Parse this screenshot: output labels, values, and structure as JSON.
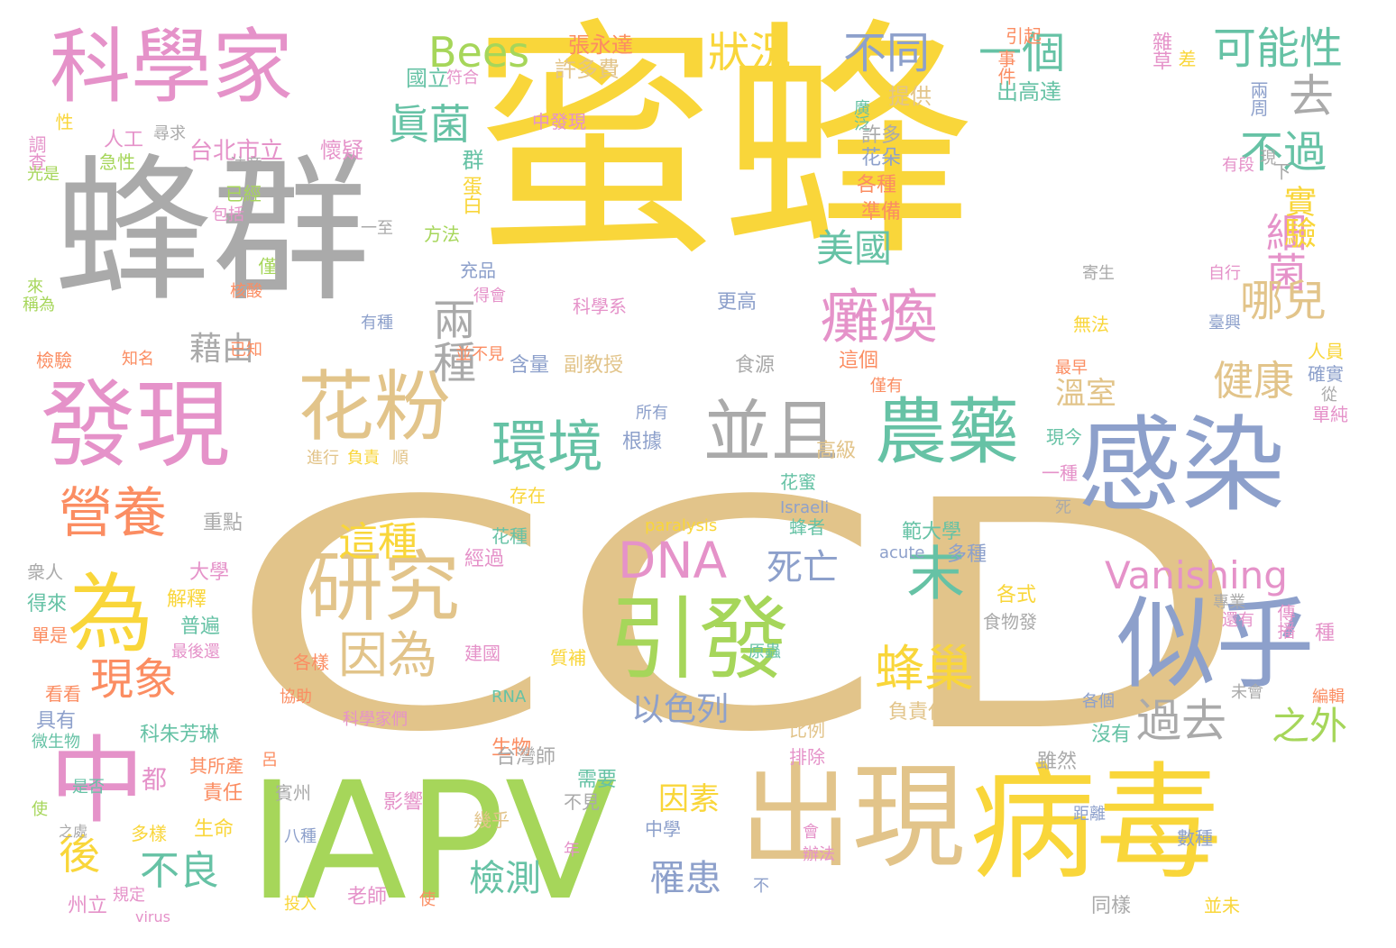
{
  "palette": {
    "yellow": "#f9d63a",
    "tan": "#e2c48a",
    "gray": "#aaaaaa",
    "pink": "#e592c9",
    "green": "#a6d65a",
    "blue": "#8da0cb",
    "orange": "#fb8d62",
    "teal": "#66c2a5"
  },
  "words": [
    {
      "text": "CCD",
      "color": "tan"
    },
    {
      "text": "蜜蜂",
      "color": "yellow"
    },
    {
      "text": "蜂群",
      "color": "gray"
    },
    {
      "text": "科學家",
      "color": "pink"
    },
    {
      "text": "發現",
      "color": "pink"
    },
    {
      "text": "IAPV",
      "color": "green"
    },
    {
      "text": "病毒",
      "color": "yellow"
    },
    {
      "text": "出現",
      "color": "tan"
    },
    {
      "text": "感染",
      "color": "blue"
    },
    {
      "text": "似乎",
      "color": "blue"
    },
    {
      "text": "中",
      "color": "pink"
    },
    {
      "text": "為",
      "color": "yellow"
    },
    {
      "text": "引發",
      "color": "green"
    },
    {
      "text": "研究",
      "color": "tan"
    },
    {
      "text": "花粉",
      "color": "tan"
    },
    {
      "text": "農藥",
      "color": "teal"
    },
    {
      "text": "並且",
      "color": "gray"
    },
    {
      "text": "環境",
      "color": "teal"
    },
    {
      "text": "癱瘓",
      "color": "pink"
    },
    {
      "text": "營養",
      "color": "orange"
    },
    {
      "text": "末",
      "color": "teal"
    },
    {
      "text": "蜂巢",
      "color": "yellow"
    },
    {
      "text": "DNA",
      "color": "pink"
    },
    {
      "text": "Vanishing",
      "color": "pink"
    },
    {
      "text": "Bees",
      "color": "green"
    },
    {
      "text": "狀況",
      "color": "yellow"
    },
    {
      "text": "不同",
      "color": "blue"
    },
    {
      "text": "一個",
      "color": "teal"
    },
    {
      "text": "可能性",
      "color": "teal"
    },
    {
      "text": "去",
      "color": "gray"
    },
    {
      "text": "不過",
      "color": "teal"
    },
    {
      "text": "眞菌",
      "color": "teal"
    },
    {
      "text": "細菌",
      "color": "pink"
    },
    {
      "text": "哪兒",
      "color": "tan"
    },
    {
      "text": "健康",
      "color": "tan"
    },
    {
      "text": "實驗",
      "color": "yellow"
    },
    {
      "text": "美國",
      "color": "teal"
    },
    {
      "text": "兩種",
      "color": "gray"
    },
    {
      "text": "藉由",
      "color": "gray"
    },
    {
      "text": "過去",
      "color": "gray"
    },
    {
      "text": "之外",
      "color": "green"
    },
    {
      "text": "因為",
      "color": "tan"
    },
    {
      "text": "現象",
      "color": "orange"
    },
    {
      "text": "這種",
      "color": "yellow"
    },
    {
      "text": "死亡",
      "color": "blue"
    },
    {
      "text": "不良",
      "color": "teal"
    },
    {
      "text": "後",
      "color": "yellow"
    },
    {
      "text": "檢測",
      "color": "teal"
    },
    {
      "text": "罹患",
      "color": "blue"
    },
    {
      "text": "以色列",
      "color": "blue"
    },
    {
      "text": "溫室",
      "color": "tan"
    },
    {
      "text": "因素",
      "color": "yellow"
    },
    {
      "text": "張永達",
      "color": "orange"
    },
    {
      "text": "許多費",
      "color": "tan"
    },
    {
      "text": "國立",
      "color": "teal"
    },
    {
      "text": "符合",
      "color": "pink"
    },
    {
      "text": "引起",
      "color": "orange"
    },
    {
      "text": "事件",
      "color": "orange"
    },
    {
      "text": "出高達",
      "color": "teal"
    },
    {
      "text": "雜草",
      "color": "pink"
    },
    {
      "text": "差",
      "color": "yellow"
    },
    {
      "text": "兩周",
      "color": "blue"
    },
    {
      "text": "提供",
      "color": "tan"
    },
    {
      "text": "廣泛",
      "color": "teal"
    },
    {
      "text": "許多",
      "color": "gray"
    },
    {
      "text": "花朵",
      "color": "blue"
    },
    {
      "text": "各種",
      "color": "orange"
    },
    {
      "text": "準備",
      "color": "orange"
    },
    {
      "text": "台北市立",
      "color": "pink"
    },
    {
      "text": "懷疑",
      "color": "pink"
    },
    {
      "text": "人工",
      "color": "pink"
    },
    {
      "text": "急性",
      "color": "green"
    },
    {
      "text": "尋求",
      "color": "gray"
    },
    {
      "text": "注意",
      "color": "gray"
    },
    {
      "text": "已經",
      "color": "green"
    },
    {
      "text": "包括",
      "color": "pink"
    },
    {
      "text": "一至",
      "color": "gray"
    },
    {
      "text": "方法",
      "color": "green"
    },
    {
      "text": "群",
      "color": "teal"
    },
    {
      "text": "蛋白",
      "color": "yellow"
    },
    {
      "text": "中發現",
      "color": "pink"
    },
    {
      "text": "性",
      "color": "yellow"
    },
    {
      "text": "調查",
      "color": "pink"
    },
    {
      "text": "光是",
      "color": "green"
    },
    {
      "text": "下",
      "color": "gray"
    },
    {
      "text": "有段",
      "color": "pink"
    },
    {
      "text": "現",
      "color": "gray"
    },
    {
      "text": "寄生",
      "color": "gray"
    },
    {
      "text": "自行",
      "color": "pink"
    },
    {
      "text": "僅",
      "color": "green"
    },
    {
      "text": "核酸",
      "color": "orange"
    },
    {
      "text": "來",
      "color": "green"
    },
    {
      "text": "稱為",
      "color": "green"
    },
    {
      "text": "充品",
      "color": "blue"
    },
    {
      "text": "得會",
      "color": "pink"
    },
    {
      "text": "科學系",
      "color": "pink"
    },
    {
      "text": "更高",
      "color": "blue"
    },
    {
      "text": "無法",
      "color": "yellow"
    },
    {
      "text": "臺興",
      "color": "blue"
    },
    {
      "text": "檢驗",
      "color": "orange"
    },
    {
      "text": "知名",
      "color": "orange"
    },
    {
      "text": "已知",
      "color": "orange"
    },
    {
      "text": "有種",
      "color": "blue"
    },
    {
      "text": "並不見",
      "color": "orange"
    },
    {
      "text": "含量",
      "color": "blue"
    },
    {
      "text": "副教授",
      "color": "tan"
    },
    {
      "text": "食源",
      "color": "gray"
    },
    {
      "text": "這個",
      "color": "orange"
    },
    {
      "text": "人員",
      "color": "yellow"
    },
    {
      "text": "最早",
      "color": "orange"
    },
    {
      "text": "確實",
      "color": "blue"
    },
    {
      "text": "僅有",
      "color": "orange"
    },
    {
      "text": "從",
      "color": "gray"
    },
    {
      "text": "單純",
      "color": "pink"
    },
    {
      "text": "所有",
      "color": "blue"
    },
    {
      "text": "根據",
      "color": "blue"
    },
    {
      "text": "高級",
      "color": "tan"
    },
    {
      "text": "現今",
      "color": "teal"
    },
    {
      "text": "進行",
      "color": "tan"
    },
    {
      "text": "負責",
      "color": "yellow"
    },
    {
      "text": "順",
      "color": "tan"
    },
    {
      "text": "花蜜",
      "color": "teal"
    },
    {
      "text": "一種",
      "color": "pink"
    },
    {
      "text": "存在",
      "color": "yellow"
    },
    {
      "text": "重點",
      "color": "gray"
    },
    {
      "text": "Israeli",
      "color": "blue"
    },
    {
      "text": "死",
      "color": "gray"
    },
    {
      "text": "花種",
      "color": "teal"
    },
    {
      "text": "paralysis",
      "color": "yellow"
    },
    {
      "text": "蜂者",
      "color": "teal"
    },
    {
      "text": "範大學",
      "color": "teal"
    },
    {
      "text": "acute",
      "color": "blue"
    },
    {
      "text": "多種",
      "color": "blue"
    },
    {
      "text": "經過",
      "color": "pink"
    },
    {
      "text": "衆人",
      "color": "gray"
    },
    {
      "text": "大學",
      "color": "pink"
    },
    {
      "text": "解釋",
      "color": "yellow"
    },
    {
      "text": "得來",
      "color": "teal"
    },
    {
      "text": "普遍",
      "color": "teal"
    },
    {
      "text": "最後還",
      "color": "pink"
    },
    {
      "text": "各式",
      "color": "yellow"
    },
    {
      "text": "食物發",
      "color": "gray"
    },
    {
      "text": "專業",
      "color": "gray"
    },
    {
      "text": "還有",
      "color": "pink"
    },
    {
      "text": "傳播",
      "color": "pink"
    },
    {
      "text": "種",
      "color": "pink"
    },
    {
      "text": "單是",
      "color": "orange"
    },
    {
      "text": "看看",
      "color": "orange"
    },
    {
      "text": "具有",
      "color": "blue"
    },
    {
      "text": "微生物",
      "color": "teal"
    },
    {
      "text": "各樣",
      "color": "orange"
    },
    {
      "text": "協助",
      "color": "orange"
    },
    {
      "text": "建國",
      "color": "pink"
    },
    {
      "text": "質補",
      "color": "yellow"
    },
    {
      "text": "RNA",
      "color": "teal"
    },
    {
      "text": "原蟲",
      "color": "teal"
    },
    {
      "text": "科學家們",
      "color": "pink"
    },
    {
      "text": "各個",
      "color": "blue"
    },
    {
      "text": "未會",
      "color": "gray"
    },
    {
      "text": "編輯",
      "color": "orange"
    },
    {
      "text": "科朱芳琳",
      "color": "teal"
    },
    {
      "text": "生物",
      "color": "orange"
    },
    {
      "text": "比例",
      "color": "tan"
    },
    {
      "text": "負責任",
      "color": "tan"
    },
    {
      "text": "沒有",
      "color": "teal"
    },
    {
      "text": "雖然",
      "color": "gray"
    },
    {
      "text": "台灣師",
      "color": "gray"
    },
    {
      "text": "排除",
      "color": "pink"
    },
    {
      "text": "其所產",
      "color": "orange"
    },
    {
      "text": "呂",
      "color": "orange"
    },
    {
      "text": "需要",
      "color": "teal"
    },
    {
      "text": "是否",
      "color": "teal"
    },
    {
      "text": "都",
      "color": "pink"
    },
    {
      "text": "責任",
      "color": "orange"
    },
    {
      "text": "賓州",
      "color": "gray"
    },
    {
      "text": "影響",
      "color": "pink"
    },
    {
      "text": "不見",
      "color": "gray"
    },
    {
      "text": "使",
      "color": "green"
    },
    {
      "text": "之處",
      "color": "gray"
    },
    {
      "text": "多樣",
      "color": "yellow"
    },
    {
      "text": "生命",
      "color": "yellow"
    },
    {
      "text": "八種",
      "color": "blue"
    },
    {
      "text": "幾乎",
      "color": "tan"
    },
    {
      "text": "中學",
      "color": "blue"
    },
    {
      "text": "年",
      "color": "pink"
    },
    {
      "text": "距離",
      "color": "blue"
    },
    {
      "text": "數種",
      "color": "blue"
    },
    {
      "text": "州立",
      "color": "pink"
    },
    {
      "text": "規定",
      "color": "pink"
    },
    {
      "text": "virus",
      "color": "pink"
    },
    {
      "text": "投入",
      "color": "yellow"
    },
    {
      "text": "老師",
      "color": "pink"
    },
    {
      "text": "使",
      "color": "orange"
    },
    {
      "text": "不",
      "color": "blue"
    },
    {
      "text": "會",
      "color": "pink"
    },
    {
      "text": "辦法",
      "color": "pink"
    },
    {
      "text": "同樣",
      "color": "gray"
    },
    {
      "text": "並未",
      "color": "yellow"
    }
  ]
}
